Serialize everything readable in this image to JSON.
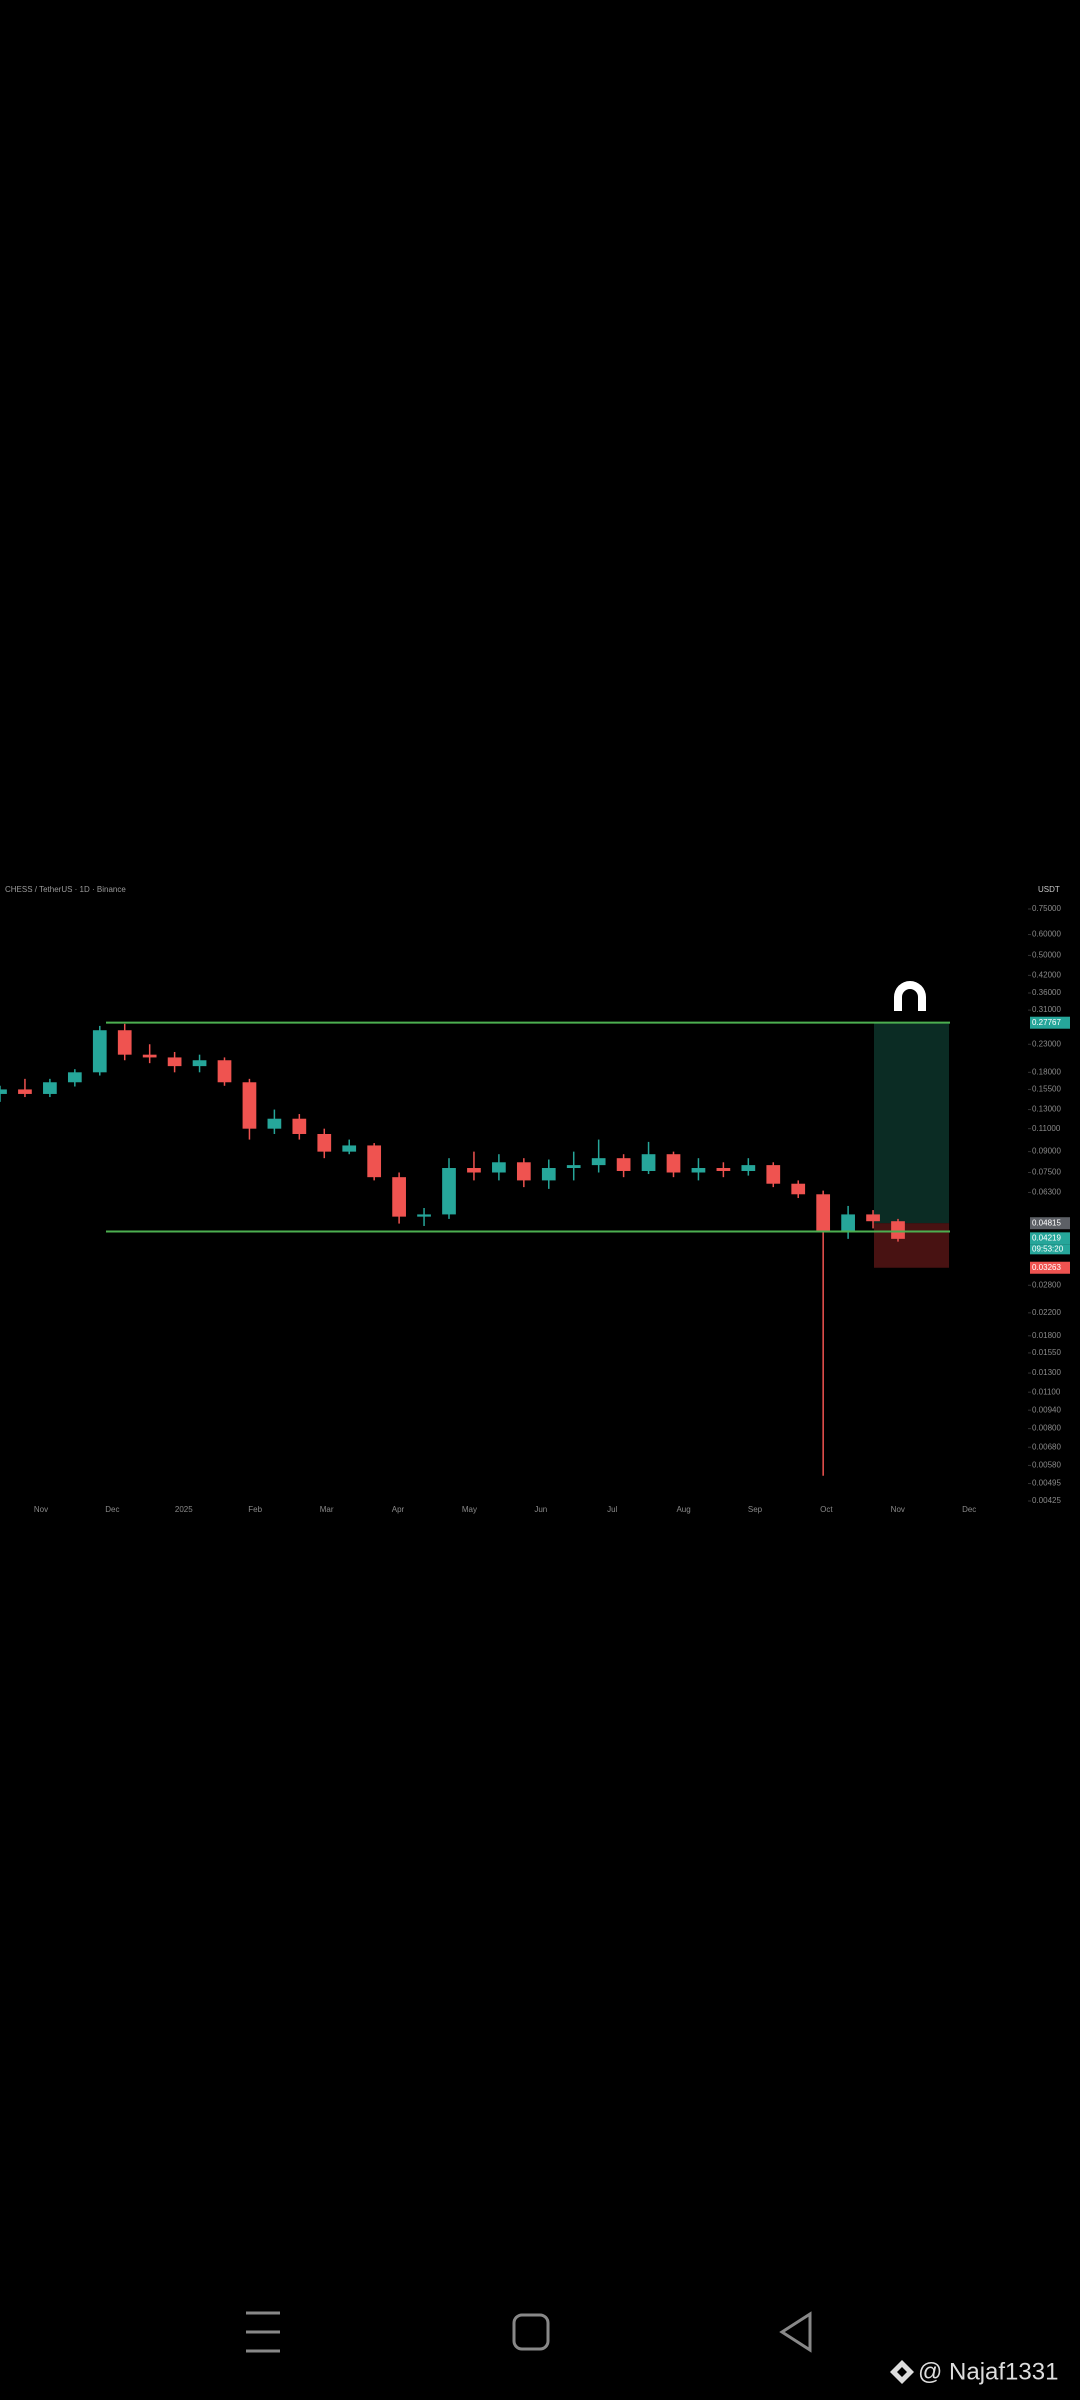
{
  "chart_data": {
    "type": "candlestick",
    "title": "CHESS / TetherUS · 1D · Binance",
    "currency": "USDT",
    "up_color": "#26a69a",
    "down_color": "#ef5350",
    "log_scale": true,
    "open": [
      0.149,
      0.155,
      0.149,
      0.165,
      0.18,
      0.26,
      0.21,
      0.205,
      0.19,
      0.2,
      0.165,
      0.11,
      0.12,
      0.105,
      0.09,
      0.095,
      0.072,
      0.051,
      0.052,
      0.078,
      0.075,
      0.082,
      0.07,
      0.078,
      0.08,
      0.085,
      0.076,
      0.088,
      0.075,
      0.078,
      0.076,
      0.08,
      0.068,
      0.062,
      0.045,
      0.052,
      0.049
    ],
    "high": [
      0.16,
      0.17,
      0.17,
      0.185,
      0.27,
      0.275,
      0.23,
      0.215,
      0.21,
      0.205,
      0.17,
      0.13,
      0.125,
      0.11,
      0.1,
      0.097,
      0.075,
      0.055,
      0.085,
      0.09,
      0.088,
      0.085,
      0.084,
      0.09,
      0.1,
      0.088,
      0.098,
      0.09,
      0.085,
      0.082,
      0.085,
      0.082,
      0.07,
      0.064,
      0.056,
      0.054,
      0.05
    ],
    "low": [
      0.139,
      0.145,
      0.145,
      0.159,
      0.175,
      0.2,
      0.195,
      0.18,
      0.18,
      0.16,
      0.1,
      0.105,
      0.1,
      0.085,
      0.088,
      0.07,
      0.048,
      0.047,
      0.05,
      0.07,
      0.07,
      0.066,
      0.065,
      0.07,
      0.075,
      0.072,
      0.074,
      0.072,
      0.07,
      0.072,
      0.073,
      0.066,
      0.06,
      0.0053,
      0.042,
      0.046,
      0.041
    ],
    "close": [
      0.155,
      0.149,
      0.165,
      0.18,
      0.26,
      0.21,
      0.205,
      0.19,
      0.2,
      0.165,
      0.11,
      0.12,
      0.105,
      0.09,
      0.095,
      0.072,
      0.051,
      0.052,
      0.078,
      0.075,
      0.082,
      0.07,
      0.078,
      0.08,
      0.085,
      0.076,
      0.088,
      0.075,
      0.078,
      0.076,
      0.08,
      0.068,
      0.062,
      0.045,
      0.052,
      0.049,
      0.042
    ],
    "ylim": [
      0.00425,
      0.75
    ],
    "yticks": [
      {
        "value": 0.75,
        "label": "0.75000"
      },
      {
        "value": 0.6,
        "label": "0.60000"
      },
      {
        "value": 0.5,
        "label": "0.50000"
      },
      {
        "value": 0.42,
        "label": "0.42000"
      },
      {
        "value": 0.36,
        "label": "0.36000"
      },
      {
        "value": 0.31,
        "label": "0.31000"
      },
      {
        "value": 0.23,
        "label": "0.23000"
      },
      {
        "value": 0.18,
        "label": "0.18000"
      },
      {
        "value": 0.155,
        "label": "0.15500"
      },
      {
        "value": 0.13,
        "label": "0.13000"
      },
      {
        "value": 0.11,
        "label": "0.11000"
      },
      {
        "value": 0.09,
        "label": "0.09000"
      },
      {
        "value": 0.075,
        "label": "0.07500"
      },
      {
        "value": 0.063,
        "label": "0.06300"
      },
      {
        "value": 0.028,
        "label": "0.02800"
      },
      {
        "value": 0.022,
        "label": "0.02200"
      },
      {
        "value": 0.018,
        "label": "0.01800"
      },
      {
        "value": 0.0155,
        "label": "0.01550"
      },
      {
        "value": 0.013,
        "label": "0.01300"
      },
      {
        "value": 0.011,
        "label": "0.01100"
      },
      {
        "value": 0.0094,
        "label": "0.00940"
      },
      {
        "value": 0.008,
        "label": "0.00800"
      },
      {
        "value": 0.0068,
        "label": "0.00680"
      },
      {
        "value": 0.0058,
        "label": "0.00580"
      },
      {
        "value": 0.00495,
        "label": "0.00495"
      },
      {
        "value": 0.00425,
        "label": "0.00425"
      }
    ],
    "month_labels": [
      "Nov",
      "Dec",
      "2025",
      "Feb",
      "Mar",
      "Apr",
      "May",
      "Jun",
      "Jul",
      "Aug",
      "Sep",
      "Oct",
      "Nov",
      "Dec"
    ],
    "levels": [
      0.278,
      0.0448
    ],
    "level_color": "#4caf50",
    "position": {
      "target": 0.27767,
      "entry": 0.04815,
      "stop": 0.03263
    },
    "price_tags": [
      {
        "value": 0.27767,
        "label": "0.27767",
        "color": "#26a69a"
      },
      {
        "value": 0.04815,
        "label": "0.04815",
        "color": "#5d6066"
      },
      {
        "value": 0.04219,
        "label": "0.04219",
        "color": "#26a69a"
      },
      {
        "value": 0.03263,
        "label": "0.03263",
        "color": "#ef5350"
      }
    ],
    "countdown": "09:53:20"
  },
  "watermark": "@ Najaf1331"
}
